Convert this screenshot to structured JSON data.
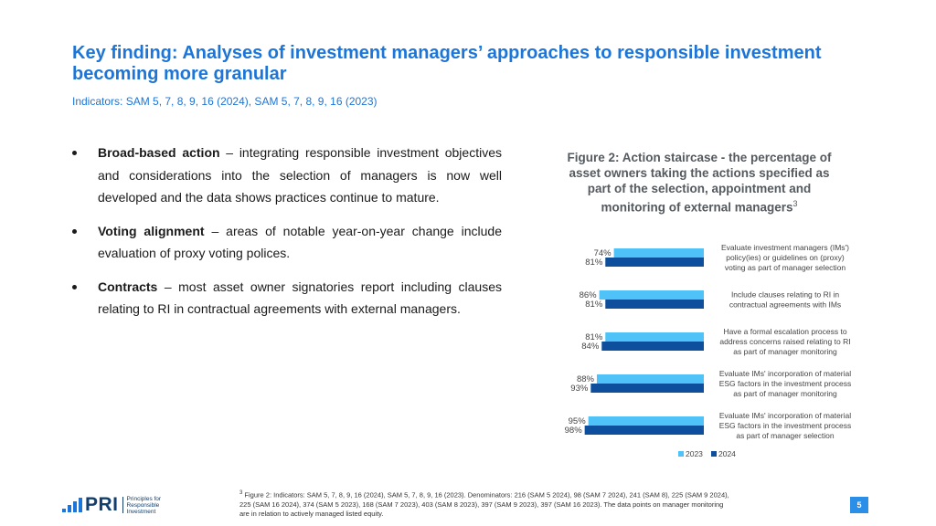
{
  "header": {
    "title": "Key finding: Analyses of investment managers’ approaches to responsible investment becoming more granular",
    "subtitle": "Indicators: SAM 5, 7, 8, 9, 16 (2024), SAM 5, 7, 8, 9, 16 (2023)"
  },
  "bullets": [
    {
      "term": "Broad-based action",
      "text": " – integrating responsible investment objectives and considerations into the selection of managers is now well developed and the data shows practices continue to mature."
    },
    {
      "term": "Voting alignment",
      "text": " – areas of notable year-on-year change include evaluation of proxy voting polices."
    },
    {
      "term": "Contracts",
      "text": " – most asset owner signatories report including clauses relating to RI in contractual agreements with external managers."
    }
  ],
  "figure": {
    "title": "Figure 2: Action staircase - the percentage of asset owners taking the actions specified as part of the selection, appointment and monitoring of external managers",
    "footnote_ref": "3"
  },
  "chart_data": {
    "type": "bar",
    "orientation": "horizontal",
    "categories": [
      "Evaluate investment managers (IMs') policy(ies) or guidelines on (proxy) voting as part of manager selection",
      "Include clauses relating to RI in contractual agreements with IMs",
      "Have a formal escalation process to address concerns raised relating to RI as part of manager monitoring",
      "Evaluate IMs' incorporation of material ESG factors in the investment process as part of manager monitoring",
      "Evaluate IMs' incorporation of material ESG factors in the investment process as part of manager selection"
    ],
    "category_lines": [
      [
        "Evaluate investment managers (IMs')",
        "policy(ies) or guidelines on (proxy)",
        "voting as part of manager selection"
      ],
      [
        "Include clauses relating to RI in",
        "contractual agreements with IMs"
      ],
      [
        "Have a formal escalation process to",
        "address concerns raised relating to RI",
        "as part of manager monitoring"
      ],
      [
        "Evaluate IMs' incorporation of material",
        "ESG factors in the investment process",
        "as part of manager monitoring"
      ],
      [
        "Evaluate IMs' incorporation of material",
        "ESG factors in the investment process",
        "as part of manager selection"
      ]
    ],
    "series": [
      {
        "name": "2023",
        "color": "#4fc3f7",
        "values": [
          74,
          86,
          81,
          88,
          95
        ],
        "labels": [
          "74%",
          "86%",
          "81%",
          "88%",
          "95%"
        ]
      },
      {
        "name": "2024",
        "color": "#0d4f9c",
        "values": [
          81,
          81,
          84,
          93,
          98
        ],
        "labels": [
          "81%",
          "81%",
          "84%",
          "93%",
          "98%"
        ]
      }
    ],
    "xlim": [
      0,
      100
    ],
    "grid": false,
    "legend": "bottom-center"
  },
  "footer": {
    "footnote_marker": "3",
    "footnote": " Figure 2: Indicators: SAM 5, 7, 8, 9, 16 (2024), SAM 5, 7, 8, 9, 16 (2023). Denominators: 216 (SAM 5 2024), 98 (SAM 7 2024), 241 (SAM 8), 225 (SAM 9 2024), 225 (SAM 16 2024), 374 (SAM 5 2023), 168 (SAM 7 2023), 403 (SAM 8 2023), 397 (SAM 9 2023), 397 (SAM 16 2023). The data points on manager monitoring are in relation to actively managed listed equity.",
    "logo_text": "PRI",
    "logo_words": [
      "Principles for",
      "Responsible",
      "Investment"
    ],
    "page_number": "5"
  }
}
